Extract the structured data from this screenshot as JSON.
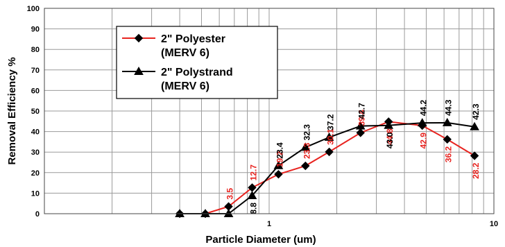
{
  "chart_data": {
    "type": "line",
    "xscale": "log",
    "xlim": [
      0.1,
      10
    ],
    "ylim": [
      0,
      100
    ],
    "yticks": [
      0,
      10,
      20,
      30,
      40,
      50,
      60,
      70,
      80,
      90,
      100
    ],
    "xtick_labels": [
      {
        "value": 1,
        "label": "1"
      },
      {
        "value": 10,
        "label": "10"
      }
    ],
    "xlabel": "Particle Diameter (um)",
    "ylabel": "Removal Efficiency %",
    "grid": "on",
    "legend_position": "top-left",
    "series": [
      {
        "name": "2\" Polyester (MERV 6)",
        "name_lines": [
          "2\" Polyester",
          "(MERV 6)"
        ],
        "color": "#e8231f",
        "line_color": "#e8231f",
        "marker": "diamond",
        "x": [
          0.4,
          0.52,
          0.66,
          0.84,
          1.1,
          1.45,
          1.85,
          2.55,
          3.4,
          4.8,
          6.2,
          8.2
        ],
        "y": [
          0,
          0,
          3.5,
          12.7,
          19.2,
          23.3,
          30.1,
          39.4,
          44.8,
          42.9,
          36.2,
          28.2
        ],
        "labels": [
          "",
          "",
          "3.5",
          "12.7",
          "19.2",
          "23.3",
          "30.1",
          "39.4",
          "44.8",
          "42.9",
          "36.2",
          "28.2"
        ]
      },
      {
        "name": "2\" Polystrand (MERV 6)",
        "name_lines": [
          "2\" Polystrand",
          "(MERV 6)"
        ],
        "color": "#000000",
        "line_color": "#000000",
        "marker": "triangle",
        "x": [
          0.4,
          0.52,
          0.66,
          0.84,
          1.1,
          1.45,
          1.85,
          2.55,
          3.4,
          4.8,
          6.2,
          8.2
        ],
        "y": [
          0,
          0,
          0,
          8.8,
          23.4,
          32.3,
          37.2,
          42.7,
          43.0,
          44.2,
          44.3,
          42.3
        ],
        "labels": [
          "",
          "",
          "",
          "8.8",
          "23.4",
          "32.3",
          "37.2",
          "42.7",
          "43.0",
          "44.2",
          "44.3",
          "42.3"
        ]
      }
    ]
  }
}
